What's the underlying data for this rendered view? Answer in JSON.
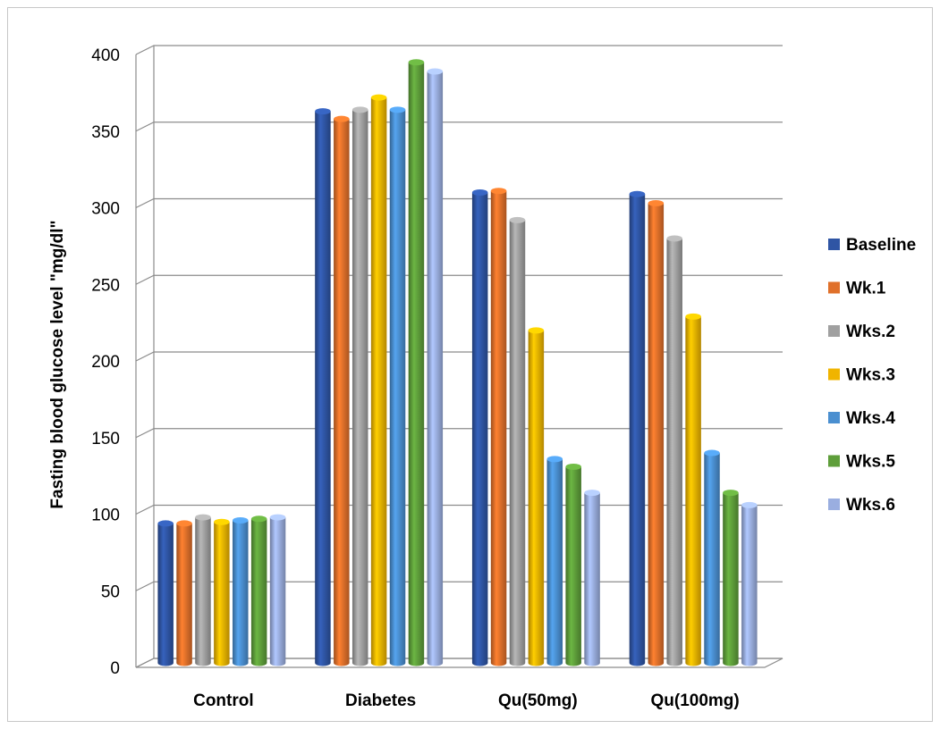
{
  "chart_data": {
    "type": "bar",
    "title": "",
    "xlabel": "",
    "ylabel": "Fasting blood glucose level \"mg/dl\"",
    "ylim": [
      0,
      400
    ],
    "yticks": [
      0,
      50,
      100,
      150,
      200,
      250,
      300,
      350,
      400
    ],
    "grid": true,
    "legend_position": "right",
    "categories": [
      "Control",
      "Diabetes",
      "Qu(50mg)",
      "Qu(100mg)"
    ],
    "series": [
      {
        "name": "Baseline",
        "color": "#2F55A4",
        "values": [
          91,
          360,
          307,
          306
        ]
      },
      {
        "name": "Wk.1",
        "color": "#E0702A",
        "values": [
          91,
          355,
          308,
          300
        ]
      },
      {
        "name": "Wks.2",
        "color": "#A0A0A0",
        "values": [
          95,
          361,
          289,
          277
        ]
      },
      {
        "name": "Wks.3",
        "color": "#F0B400",
        "values": [
          92,
          369,
          217,
          226
        ]
      },
      {
        "name": "Wks.4",
        "color": "#4A8FD0",
        "values": [
          93,
          361,
          133,
          137
        ]
      },
      {
        "name": "Wks.5",
        "color": "#5E9E3A",
        "values": [
          94,
          392,
          128,
          111
        ]
      },
      {
        "name": "Wks.6",
        "color": "#9AAEE0",
        "values": [
          95,
          386,
          111,
          103
        ]
      }
    ]
  }
}
